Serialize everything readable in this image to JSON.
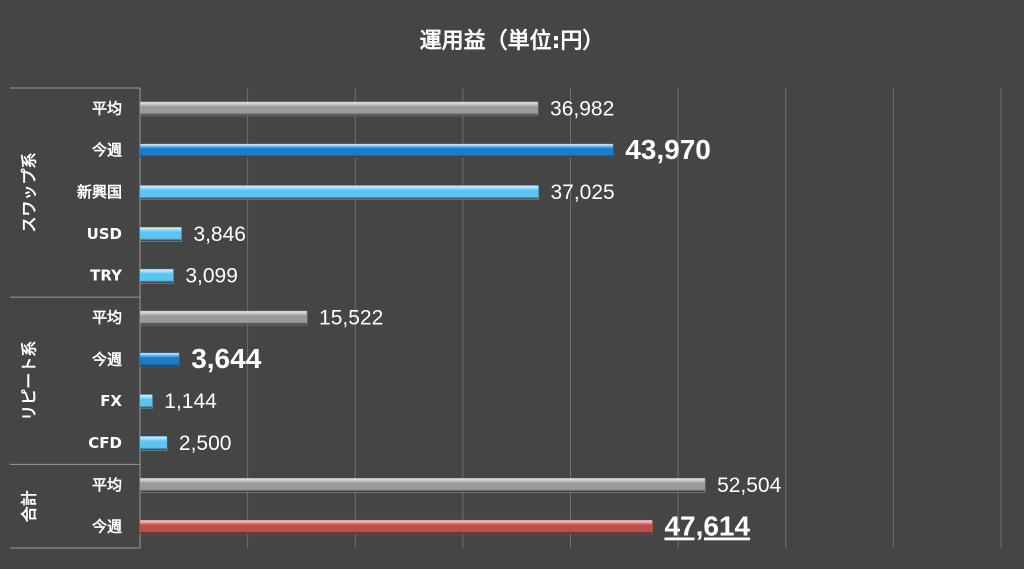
{
  "chart_data": {
    "type": "grouped-hbar",
    "title": "運用益（単位:円）",
    "xlim": [
      0,
      80000
    ],
    "xticks": [
      0,
      10000,
      20000,
      30000,
      40000,
      50000,
      60000,
      70000,
      80000
    ],
    "grid": true,
    "groups": [
      {
        "name": "スワップ系",
        "categories": [
          "平均",
          "今週",
          "新興国",
          "USD",
          "TRY"
        ],
        "values": [
          36982,
          43970,
          37025,
          3846,
          3099
        ],
        "value_labels": [
          "36,982",
          "43,970",
          "37,025",
          "3,846",
          "3,099"
        ],
        "colors": [
          "#9a9a9a",
          "#1a7ccc",
          "#5cc3f2",
          "#5cc3f2",
          "#5cc3f2"
        ],
        "label_styles": [
          "normal",
          "bold",
          "normal",
          "normal",
          "normal"
        ]
      },
      {
        "name": "リピート系",
        "categories": [
          "平均",
          "今週",
          "FX",
          "CFD"
        ],
        "values": [
          15522,
          3644,
          1144,
          2500
        ],
        "value_labels": [
          "15,522",
          "3,644",
          "1,144",
          "2,500"
        ],
        "colors": [
          "#9a9a9a",
          "#1a7ccc",
          "#5cc3f2",
          "#5cc3f2"
        ],
        "label_styles": [
          "normal",
          "bold",
          "normal",
          "normal"
        ]
      },
      {
        "name": "合計",
        "categories": [
          "平均",
          "今週"
        ],
        "values": [
          52504,
          47614
        ],
        "value_labels": [
          "52,504",
          "47,614"
        ],
        "colors": [
          "#9a9a9a",
          "#c0504d"
        ],
        "label_styles": [
          "normal",
          "bold-underline"
        ]
      }
    ]
  }
}
